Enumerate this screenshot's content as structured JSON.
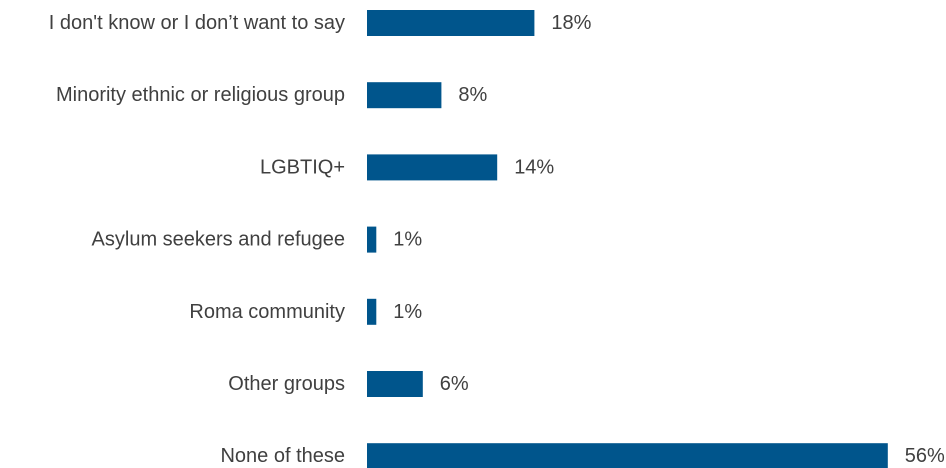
{
  "chart_data": {
    "type": "bar",
    "orientation": "horizontal",
    "categories": [
      "I don't know or I don’t want to say",
      "Minority ethnic or religious group",
      "LGBTIQ+",
      "Asylum seekers and refugee",
      "Roma community",
      "Other groups",
      "None of these"
    ],
    "values": [
      18,
      8,
      14,
      1,
      1,
      6,
      56
    ],
    "value_labels": [
      "18%",
      "8%",
      "14%",
      "1%",
      "1%",
      "6%",
      "56%"
    ],
    "unit": "%",
    "bar_color": "#00558C",
    "grid": false,
    "legend": "none"
  }
}
